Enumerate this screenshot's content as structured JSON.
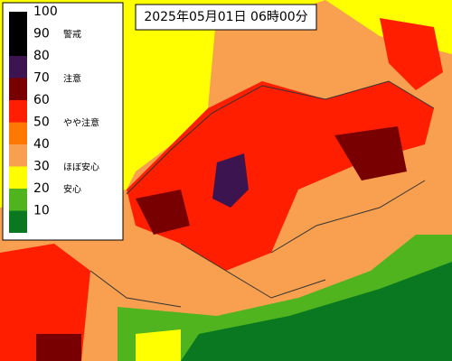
{
  "timestamp": "2025年05月01日 06時00分",
  "legend": {
    "items": [
      {
        "value": 100,
        "color": "#000000"
      },
      {
        "value": 90,
        "color": "#000000",
        "label": "警戒"
      },
      {
        "value": 80,
        "color": "#3c1450"
      },
      {
        "value": 70,
        "color": "#780000",
        "label": "注意"
      },
      {
        "value": 60,
        "color": "#ff1e00"
      },
      {
        "value": 50,
        "color": "#ff7800",
        "label": "やや注意"
      },
      {
        "value": 40,
        "color": "#f8a050"
      },
      {
        "value": 30,
        "color": "#ffff00",
        "label": "ほぼ安心"
      },
      {
        "value": 20,
        "color": "#50b41e",
        "label": "安心"
      },
      {
        "value": 10,
        "color": "#0a7820"
      }
    ]
  }
}
